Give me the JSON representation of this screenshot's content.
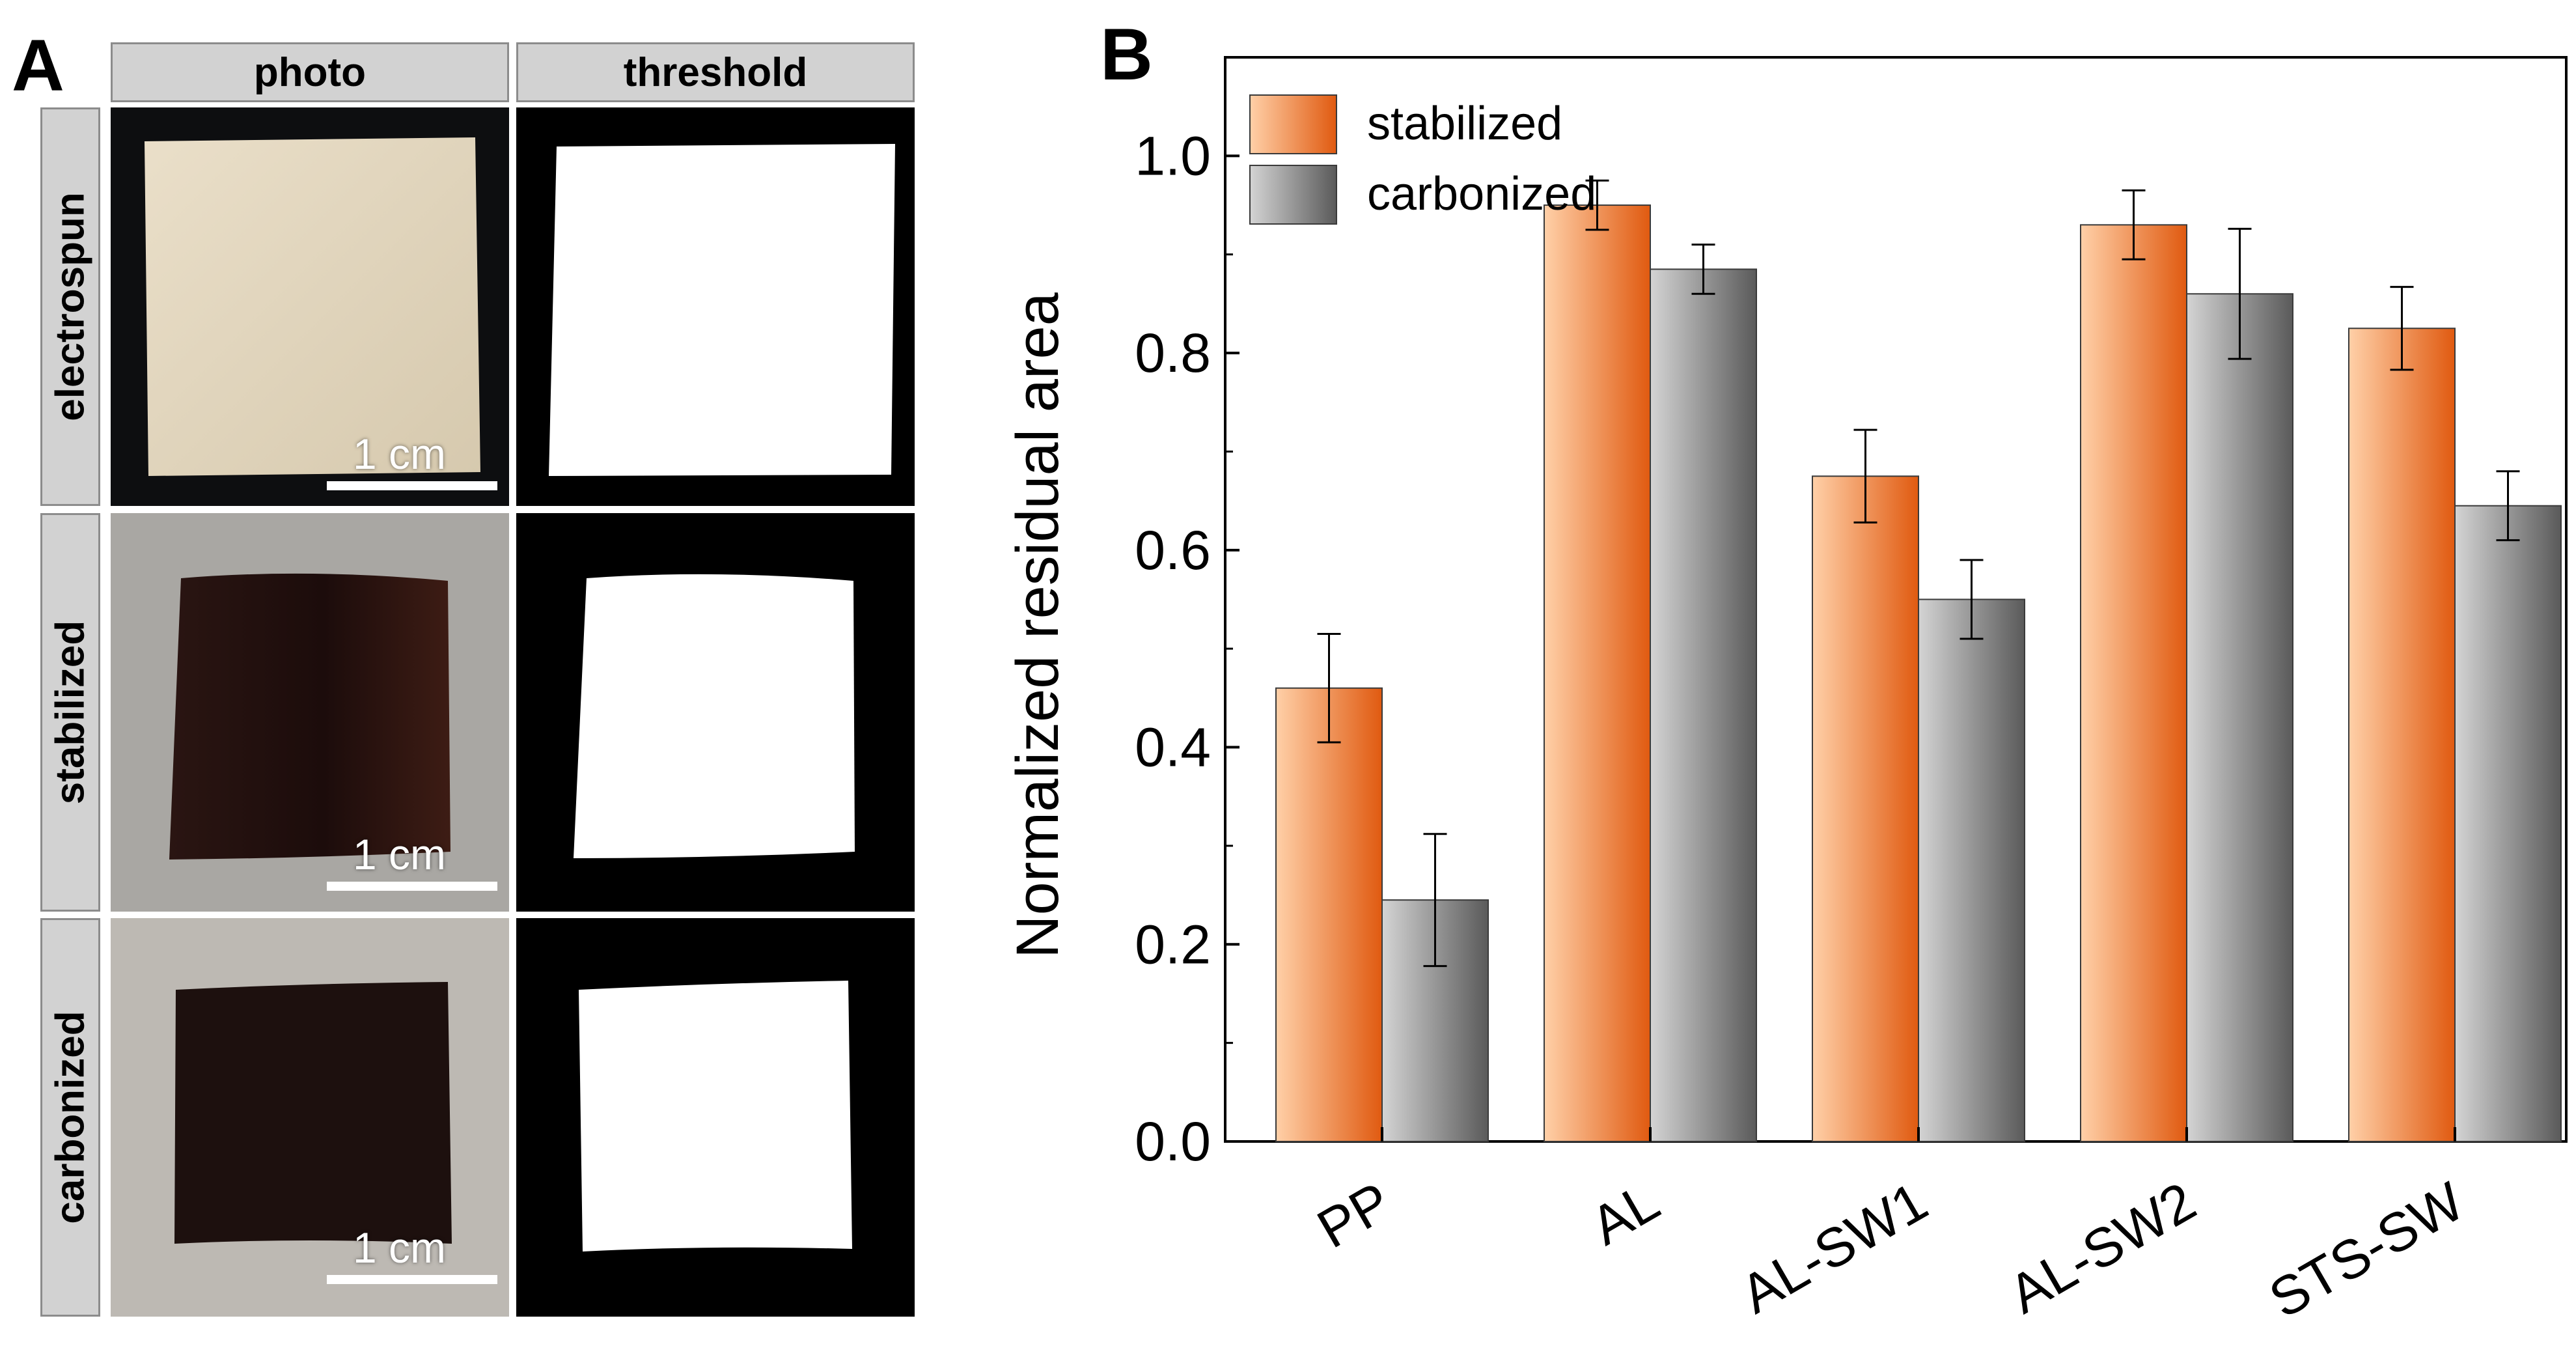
{
  "panel_a": {
    "letter": "A",
    "columns": [
      "photo",
      "threshold"
    ],
    "rows": [
      "electrospun",
      "stabilized",
      "carbonized"
    ],
    "scalebar_label": "1 cm"
  },
  "panel_b": {
    "letter": "B"
  },
  "chart_data": {
    "type": "bar",
    "title": "",
    "xlabel": "",
    "ylabel": "Normalized residual area",
    "categories": [
      "PP",
      "AL",
      "AL-SW1",
      "AL-SW2",
      "STS-SW"
    ],
    "series": [
      {
        "name": "stabilized",
        "values": [
          0.46,
          0.95,
          0.675,
          0.93,
          0.825
        ],
        "errors": [
          0.055,
          0.025,
          0.047,
          0.035,
          0.042
        ],
        "color_light": "#ffd0a8",
        "color_dark": "#e05a10"
      },
      {
        "name": "carbonized",
        "values": [
          0.245,
          0.885,
          0.55,
          0.86,
          0.645
        ],
        "errors": [
          0.067,
          0.025,
          0.04,
          0.066,
          0.035
        ],
        "color_light": "#d4d4d4",
        "color_dark": "#5a5a5a"
      }
    ],
    "ylim": [
      0.0,
      1.1
    ],
    "yticks": [
      "0.0",
      "0.2",
      "0.4",
      "0.6",
      "0.8",
      "1.0"
    ],
    "legend_position": "top-left",
    "grid": false
  }
}
